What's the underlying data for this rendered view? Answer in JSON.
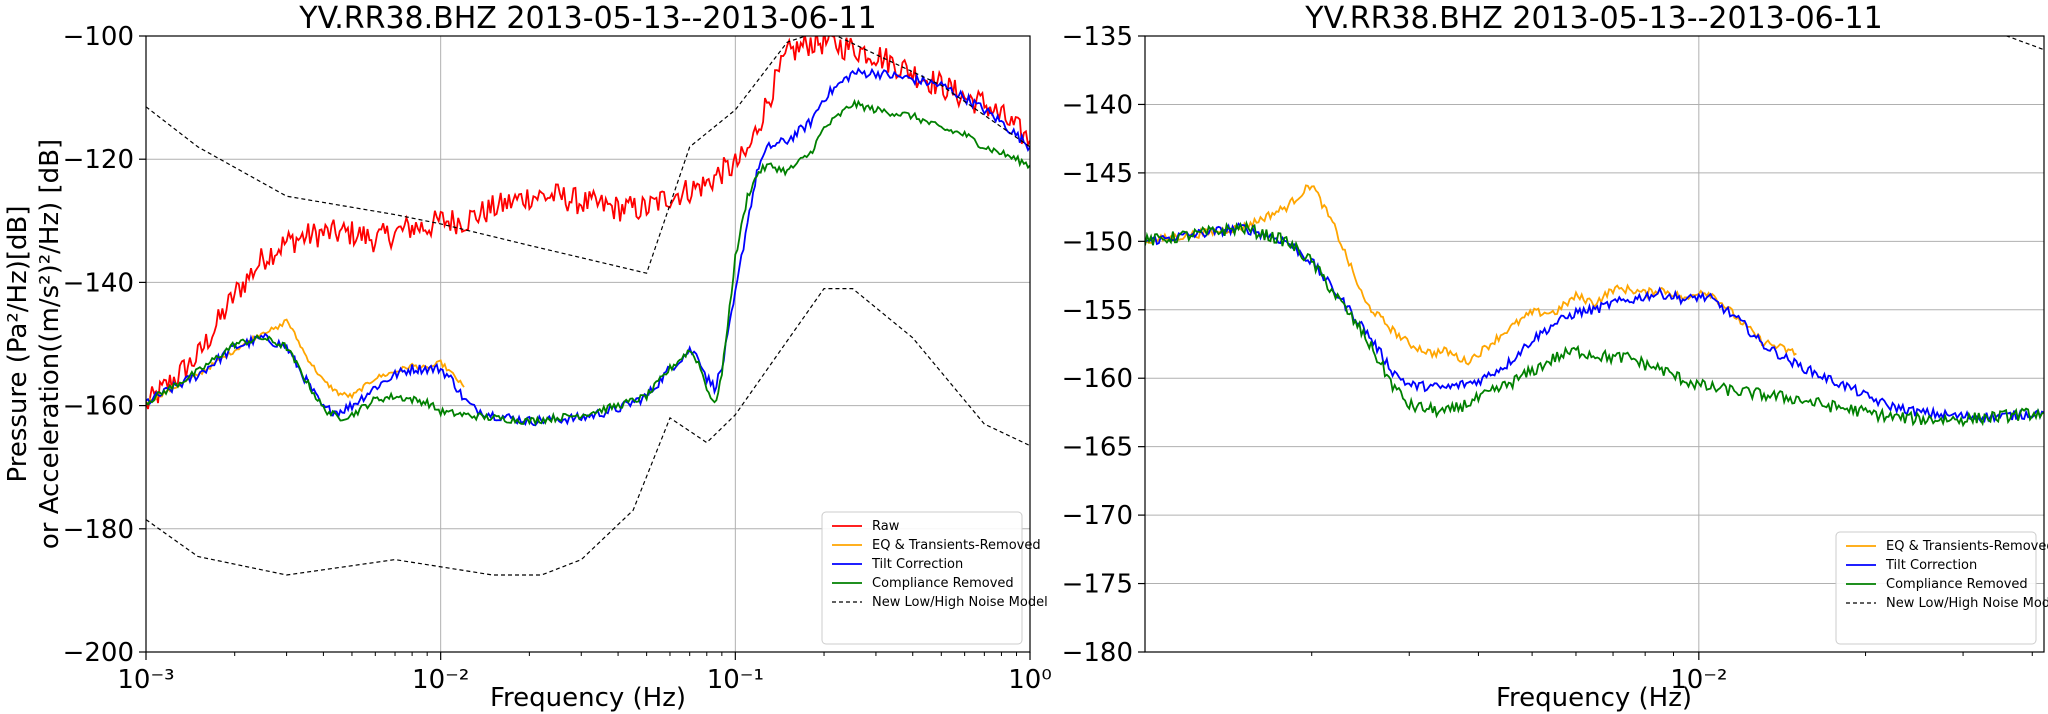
{
  "chart_data": [
    {
      "type": "line",
      "title": "YV.RR38.BHZ  2013-05-13--2013-06-11",
      "xlabel": "Frequency (Hz)",
      "ylabel_line1": "Pressure (Pa²/Hz)[dB]",
      "ylabel_line2": "or Acceleration((m/s²)²/Hz) [dB]",
      "xscale": "log",
      "xlim": [
        0.001,
        1
      ],
      "ylim": [
        -200,
        -100
      ],
      "xticks": [
        {
          "value": 0.001,
          "label": "10⁻³"
        },
        {
          "value": 0.01,
          "label": "10⁻²"
        },
        {
          "value": 0.1,
          "label": "10⁻¹"
        },
        {
          "value": 1,
          "label": "10⁰"
        }
      ],
      "yticks": [
        -200,
        -180,
        -160,
        -140,
        -120,
        -100
      ],
      "ytick_labels": [
        "−200",
        "−180",
        "−160",
        "−140",
        "−120",
        "−100"
      ],
      "grid": true,
      "legend_position": "lower-right",
      "series": [
        {
          "name": "Raw",
          "color": "#ff0000",
          "jitter": 2.2,
          "x": [
            0.001,
            0.0015,
            0.002,
            0.0025,
            0.003,
            0.0035,
            0.004,
            0.005,
            0.006,
            0.007,
            0.008,
            0.009,
            0.01,
            0.012,
            0.015,
            0.02,
            0.025,
            0.03,
            0.04,
            0.05,
            0.06,
            0.07,
            0.08,
            0.09,
            0.1,
            0.11,
            0.13,
            0.15,
            0.18,
            0.2,
            0.25,
            0.3,
            0.4,
            0.5,
            0.6,
            0.7,
            0.8,
            1.0
          ],
          "y": [
            -160,
            -152,
            -142,
            -136,
            -133.5,
            -132.5,
            -132,
            -132,
            -133,
            -132,
            -131,
            -131,
            -130,
            -130,
            -128,
            -126,
            -126,
            -127,
            -128,
            -128,
            -126,
            -125,
            -124,
            -122,
            -121,
            -119,
            -110,
            -103,
            -101,
            -101,
            -102,
            -103,
            -106,
            -108,
            -110,
            -111,
            -113,
            -117
          ]
        },
        {
          "name": "EQ & Transients-Removed",
          "color": "#ffa500",
          "jitter": 0.4,
          "x": [
            0.001,
            0.0015,
            0.002,
            0.0025,
            0.0028,
            0.003,
            0.0035,
            0.004,
            0.0045,
            0.005,
            0.006,
            0.007,
            0.008,
            0.009,
            0.01,
            0.011,
            0.012
          ],
          "y": [
            -159.5,
            -155,
            -151,
            -148,
            -147.5,
            -146,
            -152,
            -156,
            -158,
            -158.5,
            -155.5,
            -154.5,
            -153.5,
            -154,
            -153,
            -155,
            -157
          ]
        },
        {
          "name": "Tilt Correction",
          "color": "#0000ff",
          "jitter": 0.8,
          "x": [
            0.001,
            0.0015,
            0.002,
            0.0025,
            0.003,
            0.0035,
            0.004,
            0.0045,
            0.005,
            0.006,
            0.007,
            0.008,
            0.009,
            0.01,
            0.011,
            0.012,
            0.013,
            0.015,
            0.02,
            0.03,
            0.04,
            0.05,
            0.06,
            0.07,
            0.075,
            0.08,
            0.085,
            0.09,
            0.1,
            0.11,
            0.12,
            0.13,
            0.15,
            0.18,
            0.2,
            0.25,
            0.3,
            0.4,
            0.5,
            0.6,
            0.7,
            0.8,
            1.0
          ],
          "y": [
            -159.5,
            -155,
            -150.5,
            -149,
            -150.5,
            -156,
            -160.5,
            -161,
            -160,
            -157,
            -155,
            -154,
            -154,
            -154,
            -156,
            -159,
            -160.5,
            -161.5,
            -162.5,
            -162,
            -160.5,
            -158.5,
            -154,
            -151,
            -152,
            -155.5,
            -157,
            -154,
            -142,
            -130,
            -121,
            -118,
            -117,
            -114,
            -110,
            -106,
            -106,
            -107,
            -108,
            -110,
            -112,
            -114,
            -118
          ]
        },
        {
          "name": "Compliance Removed",
          "color": "#008000",
          "jitter": 0.6,
          "x": [
            0.001,
            0.0015,
            0.002,
            0.0025,
            0.003,
            0.0035,
            0.004,
            0.0045,
            0.005,
            0.006,
            0.007,
            0.008,
            0.009,
            0.01,
            0.012,
            0.015,
            0.02,
            0.03,
            0.04,
            0.05,
            0.06,
            0.07,
            0.075,
            0.08,
            0.085,
            0.09,
            0.1,
            0.11,
            0.12,
            0.13,
            0.15,
            0.18,
            0.2,
            0.25,
            0.3,
            0.4,
            0.5,
            0.6,
            0.7,
            0.8,
            1.0
          ],
          "y": [
            -159.5,
            -154.5,
            -150,
            -149,
            -150.5,
            -156,
            -160.5,
            -162,
            -161.5,
            -159,
            -158.5,
            -159,
            -159.5,
            -161,
            -161.5,
            -162,
            -162.5,
            -161.5,
            -160,
            -158.5,
            -154,
            -151,
            -153,
            -157,
            -160,
            -155,
            -136,
            -126,
            -122,
            -121,
            -122,
            -119,
            -115,
            -111,
            -112,
            -113,
            -115,
            -116,
            -118,
            -119,
            -121
          ]
        },
        {
          "name": "New Low/High Noise Model",
          "color": "#000000",
          "dash": true,
          "segments": [
            {
              "x": [
                0.001,
                0.0015,
                0.003,
                0.007,
                0.01,
                0.02,
                0.05,
                0.07,
                0.1,
                0.15,
                0.2,
                0.3,
                0.5,
                1.0
              ],
              "y": [
                -111.5,
                -118,
                -126,
                -129,
                -130.5,
                -134,
                -138.5,
                -118,
                -112,
                -101,
                -99,
                -103,
                -108,
                -118
              ]
            },
            {
              "x": [
                0.001,
                0.0015,
                0.003,
                0.007,
                0.015,
                0.022,
                0.03,
                0.045,
                0.06,
                0.08,
                0.1,
                0.15,
                0.2,
                0.25,
                0.4,
                0.7,
                1.0
              ],
              "y": [
                -178.5,
                -184.5,
                -187.5,
                -185,
                -187.5,
                -187.5,
                -185,
                -177,
                -162,
                -166,
                -161.5,
                -149.5,
                -141,
                -141,
                -149,
                -163,
                -166.5
              ]
            }
          ]
        }
      ],
      "legend": [
        "Raw",
        "EQ & Transients-Removed",
        "Tilt Correction",
        "Compliance Removed",
        "New Low/High Noise Model"
      ]
    },
    {
      "type": "line",
      "title": "YV.RR38.BHZ  2013-05-13--2013-06-11",
      "xlabel": "Frequency (Hz)",
      "xscale": "log",
      "xlim": [
        0.001,
        0.042
      ],
      "ylim": [
        -180,
        -135
      ],
      "xticks": [
        {
          "value": 0.01,
          "label": "10⁻²"
        }
      ],
      "yticks": [
        -180,
        -175,
        -170,
        -165,
        -160,
        -155,
        -150,
        -145,
        -140,
        -135
      ],
      "ytick_labels": [
        "−180",
        "−175",
        "−170",
        "−165",
        "−160",
        "−155",
        "−150",
        "−145",
        "−140",
        "−135"
      ],
      "grid": true,
      "legend_position": "lower-right",
      "series": [
        {
          "name": "EQ & Transients-Removed",
          "color": "#ffa500",
          "jitter": 0.3,
          "x": [
            0.001,
            0.0015,
            0.0018,
            0.002,
            0.0022,
            0.0025,
            0.0028,
            0.003,
            0.0033,
            0.0035,
            0.0038,
            0.004,
            0.0045,
            0.005,
            0.0055,
            0.006,
            0.0065,
            0.007,
            0.0075,
            0.008,
            0.0085,
            0.009,
            0.0095,
            0.01,
            0.0105,
            0.011,
            0.012,
            0.013,
            0.015
          ],
          "y": [
            -150,
            -149,
            -147.5,
            -145.8,
            -149,
            -154.5,
            -156.5,
            -157.5,
            -158.2,
            -158,
            -158.8,
            -158.2,
            -156.5,
            -155.2,
            -155.2,
            -154,
            -154.5,
            -153.5,
            -153.5,
            -153.8,
            -153.5,
            -153.8,
            -154.3,
            -153.6,
            -153.8,
            -154.5,
            -156,
            -157.3,
            -158.2
          ]
        },
        {
          "name": "Tilt Correction",
          "color": "#0000ff",
          "jitter": 0.35,
          "x": [
            0.001,
            0.0015,
            0.0018,
            0.002,
            0.0025,
            0.0028,
            0.003,
            0.0035,
            0.004,
            0.0045,
            0.005,
            0.0055,
            0.006,
            0.0065,
            0.007,
            0.0075,
            0.008,
            0.0085,
            0.009,
            0.0095,
            0.01,
            0.0105,
            0.011,
            0.012,
            0.013,
            0.015,
            0.017,
            0.019,
            0.02,
            0.022,
            0.025,
            0.03,
            0.035,
            0.042
          ],
          "y": [
            -150,
            -149,
            -150,
            -151.5,
            -156.5,
            -159.5,
            -160.5,
            -160.7,
            -160.2,
            -159,
            -157.2,
            -156,
            -155.2,
            -155,
            -154.5,
            -154.3,
            -154,
            -153.8,
            -154,
            -154.3,
            -154,
            -154.2,
            -154.8,
            -156,
            -157.5,
            -159,
            -160,
            -160.8,
            -161.3,
            -162,
            -162.5,
            -162.8,
            -162.8,
            -162.5
          ]
        },
        {
          "name": "Compliance Removed",
          "color": "#008000",
          "jitter": 0.45,
          "x": [
            0.001,
            0.0015,
            0.0018,
            0.002,
            0.0025,
            0.0028,
            0.003,
            0.0035,
            0.004,
            0.0045,
            0.005,
            0.0055,
            0.006,
            0.0065,
            0.007,
            0.0075,
            0.008,
            0.0085,
            0.009,
            0.0095,
            0.01,
            0.0105,
            0.011,
            0.012,
            0.013,
            0.015,
            0.017,
            0.019,
            0.02,
            0.022,
            0.025,
            0.03,
            0.035,
            0.042
          ],
          "y": [
            -150,
            -149,
            -150,
            -151.5,
            -157,
            -160.5,
            -162,
            -162.5,
            -161.5,
            -160.5,
            -159.5,
            -158.5,
            -158,
            -158.3,
            -158.5,
            -158.5,
            -159,
            -159.3,
            -159.8,
            -160.2,
            -160.5,
            -160.7,
            -160.8,
            -161,
            -161.2,
            -161.5,
            -162,
            -162.3,
            -162.5,
            -162.8,
            -163,
            -163,
            -162.8,
            -162.5
          ]
        },
        {
          "name": "New Low/High Noise Model",
          "color": "#000000",
          "dash": true,
          "segments": [
            {
              "x": [
                0.033,
                0.036,
                0.042
              ],
              "y": [
                -134.5,
                -135,
                -136
              ]
            }
          ]
        }
      ],
      "legend": [
        "EQ & Transients-Removed",
        "Tilt Correction",
        "Compliance Removed",
        "New Low/High Noise Model"
      ]
    }
  ]
}
